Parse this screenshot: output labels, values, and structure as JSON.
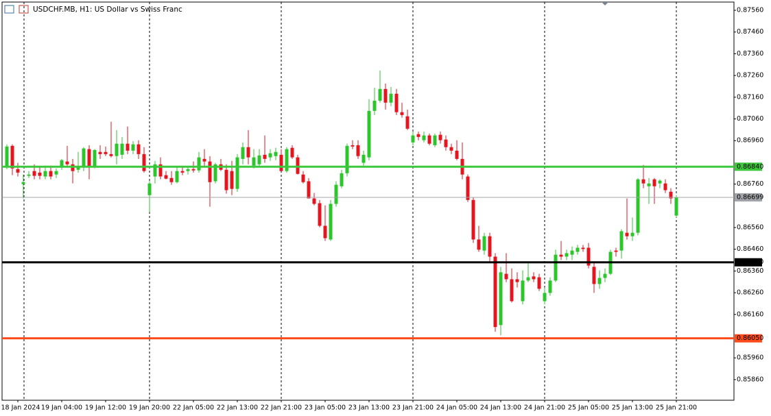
{
  "chart_data": {
    "type": "candlestick",
    "title": "USDCHF.MB, H1:  US Dollar vs Swiss Franc",
    "categories": [
      null,
      null,
      "18 Jan 2024",
      null,
      null,
      null,
      null,
      null,
      null,
      null,
      "19 Jan 04:00",
      null,
      null,
      null,
      null,
      null,
      null,
      null,
      "19 Jan 12:00",
      null,
      null,
      null,
      null,
      null,
      null,
      null,
      "19 Jan 20:00",
      null,
      null,
      null,
      null,
      null,
      null,
      null,
      "22 Jan 05:00",
      null,
      null,
      null,
      null,
      null,
      null,
      null,
      "22 Jan 13:00",
      null,
      null,
      null,
      null,
      null,
      null,
      null,
      "22 Jan 21:00",
      null,
      null,
      null,
      null,
      null,
      null,
      null,
      "23 Jan 05:00",
      null,
      null,
      null,
      null,
      null,
      null,
      null,
      "23 Jan 13:00",
      null,
      null,
      null,
      null,
      null,
      null,
      null,
      "23 Jan 21:00",
      null,
      null,
      null,
      null,
      null,
      null,
      null,
      "24 Jan 05:00",
      null,
      null,
      null,
      null,
      null,
      null,
      null,
      "24 Jan 13:00",
      null,
      null,
      null,
      null,
      null,
      null,
      null,
      "24 Jan 21:00",
      null,
      null,
      null,
      null,
      null,
      null,
      null,
      "25 Jan 05:00",
      null,
      null,
      null,
      null,
      null,
      null,
      null,
      "25 Jan 13:00",
      null,
      null,
      null,
      null,
      null,
      null,
      null,
      "25 Jan 21:00"
    ],
    "open": [
      0.86839,
      0.86936,
      0.86829,
      0.8676,
      0.86798,
      0.8682,
      0.86813,
      0.86795,
      0.8682,
      0.86804,
      0.86836,
      0.86864,
      0.86851,
      0.86826,
      0.86839,
      0.86921,
      0.86842,
      0.86908,
      0.86908,
      0.86898,
      0.86889,
      0.86895,
      0.86946,
      0.86914,
      0.86943,
      0.86898,
      0.86709,
      0.86795,
      0.86851,
      0.86801,
      0.86788,
      0.86769,
      0.8682,
      0.8682,
      0.86829,
      0.86823,
      0.86876,
      0.86864,
      0.86773,
      0.86851,
      0.86826,
      0.8682,
      0.86738,
      0.86876,
      0.8693,
      0.86845,
      0.86851,
      0.86895,
      0.86883,
      0.86889,
      0.86895,
      0.8682,
      0.86927,
      0.86883,
      0.86804,
      0.86773,
      0.86694,
      0.86672,
      0.86568,
      0.86505,
      0.86669,
      0.8675,
      0.8681,
      0.86939,
      0.86939,
      0.86858,
      0.86883,
      0.87097,
      0.87144,
      0.87198,
      0.87135,
      0.87176,
      0.87091,
      0.87072,
      0.86952,
      0.8699,
      0.86962,
      0.86984,
      0.86939,
      0.86987,
      0.86965,
      0.8693,
      0.86914,
      0.86876,
      0.86795,
      0.86687,
      0.86505,
      0.86454,
      0.8652,
      0.86426,
      0.86111,
      0.86347,
      0.86322,
      0.86322,
      0.86221,
      0.86316,
      0.86335,
      0.86331,
      0.86221,
      0.86259,
      0.86316,
      0.86435,
      0.86426,
      0.86435,
      0.86448,
      0.86467,
      0.86467,
      0.86379,
      0.863,
      0.86328,
      0.86347,
      0.86454,
      0.86454,
      0.86536,
      0.8652,
      0.86536,
      0.86782,
      0.8675,
      0.86782,
      0.86763,
      0.86763,
      0.86725,
      0.86615
    ],
    "high": [
      0.86943,
      0.86943,
      0.86858,
      0.86804,
      0.8682,
      0.86851,
      0.86836,
      0.86845,
      0.86845,
      0.86832,
      0.86876,
      0.86936,
      0.86876,
      0.86908,
      0.8693,
      0.86939,
      0.86921,
      0.86939,
      0.86933,
      0.87047,
      0.87009,
      0.86977,
      0.87025,
      0.86958,
      0.86962,
      0.8693,
      0.86773,
      0.86867,
      0.86883,
      0.8682,
      0.8682,
      0.86836,
      0.86839,
      0.86836,
      0.86864,
      0.86908,
      0.86921,
      0.86889,
      0.86858,
      0.86876,
      0.86851,
      0.86867,
      0.86898,
      0.86952,
      0.87009,
      0.86921,
      0.86921,
      0.86984,
      0.86921,
      0.86927,
      0.86921,
      0.8693,
      0.86939,
      0.86895,
      0.8682,
      0.86788,
      0.86719,
      0.86687,
      0.86662,
      0.86687,
      0.86773,
      0.86826,
      0.86946,
      0.86962,
      0.86962,
      0.86914,
      0.87151,
      0.87204,
      0.87283,
      0.87223,
      0.87207,
      0.87198,
      0.87135,
      0.87103,
      0.87002,
      0.87002,
      0.87002,
      0.86993,
      0.86993,
      0.87002,
      0.86984,
      0.86946,
      0.86962,
      0.86952,
      0.86804,
      0.867,
      0.86568,
      0.86536,
      0.86536,
      0.86442,
      0.86379,
      0.86442,
      0.86372,
      0.86354,
      0.86363,
      0.86395,
      0.86354,
      0.86347,
      0.86284,
      0.86331,
      0.86458,
      0.86498,
      0.86458,
      0.86473,
      0.8648,
      0.8648,
      0.86489,
      0.86404,
      0.86363,
      0.86372,
      0.86458,
      0.86467,
      0.86552,
      0.86694,
      0.86606,
      0.86788,
      0.86848,
      0.86788,
      0.86788,
      0.86782,
      0.86782,
      0.86741,
      0.86709
    ],
    "low": [
      0.86829,
      0.86801,
      0.86795,
      0.86694,
      0.86788,
      0.86782,
      0.86782,
      0.86782,
      0.86782,
      0.86788,
      0.86826,
      0.86842,
      0.86763,
      0.86813,
      0.8682,
      0.86782,
      0.86832,
      0.86876,
      0.86889,
      0.86883,
      0.86851,
      0.86876,
      0.86898,
      0.86898,
      0.86876,
      0.86813,
      0.86631,
      0.86763,
      0.86782,
      0.86782,
      0.86757,
      0.86763,
      0.86801,
      0.86804,
      0.86813,
      0.86813,
      0.86839,
      0.86656,
      0.86763,
      0.8682,
      0.86716,
      0.86709,
      0.86725,
      0.86851,
      0.86851,
      0.86832,
      0.86836,
      0.86858,
      0.86867,
      0.8687,
      0.8682,
      0.86813,
      0.86876,
      0.86804,
      0.86763,
      0.86694,
      0.86662,
      0.86561,
      0.86498,
      0.86498,
      0.86656,
      0.86741,
      0.86795,
      0.86921,
      0.86876,
      0.86845,
      0.8687,
      0.87078,
      0.87135,
      0.87103,
      0.87119,
      0.87078,
      0.87066,
      0.87009,
      0.86939,
      0.86962,
      0.86952,
      0.86939,
      0.8693,
      0.86946,
      0.86914,
      0.86898,
      0.8687,
      0.86782,
      0.86678,
      0.86489,
      0.86448,
      0.86435,
      0.86404,
      0.8608,
      0.86064,
      0.86309,
      0.86215,
      0.86284,
      0.86206,
      0.86309,
      0.86309,
      0.86268,
      0.86206,
      0.86246,
      0.86309,
      0.8641,
      0.8641,
      0.8641,
      0.86435,
      0.86448,
      0.86372,
      0.86259,
      0.86278,
      0.86309,
      0.86341,
      0.86426,
      0.86417,
      0.86505,
      0.86498,
      0.86524,
      0.86741,
      0.86669,
      0.86669,
      0.86741,
      0.86719,
      0.86669,
      0.86606
    ],
    "close": [
      0.86933,
      0.86832,
      0.86813,
      0.86769,
      0.86804,
      0.86798,
      0.86798,
      0.8682,
      0.86795,
      0.8682,
      0.8687,
      0.86851,
      0.8682,
      0.86842,
      0.86924,
      0.86836,
      0.86917,
      0.86898,
      0.86898,
      0.86889,
      0.86946,
      0.86946,
      0.86914,
      0.86943,
      0.86898,
      0.8682,
      0.86763,
      0.86851,
      0.86795,
      0.86785,
      0.86769,
      0.8682,
      0.86813,
      0.86829,
      0.86823,
      0.86883,
      0.86864,
      0.86769,
      0.86851,
      0.86826,
      0.86732,
      0.86738,
      0.86883,
      0.8693,
      0.86883,
      0.86883,
      0.86892,
      0.86876,
      0.86902,
      0.86908,
      0.8682,
      0.86921,
      0.86883,
      0.86807,
      0.86769,
      0.86694,
      0.86669,
      0.86568,
      0.86511,
      0.86669,
      0.86757,
      0.8681,
      0.86936,
      0.86933,
      0.86889,
      0.86895,
      0.87097,
      0.87144,
      0.87198,
      0.87135,
      0.87176,
      0.87091,
      0.87078,
      0.87015,
      0.86984,
      0.86977,
      0.86984,
      0.86946,
      0.86984,
      0.86962,
      0.8693,
      0.86914,
      0.86876,
      0.86804,
      0.86687,
      0.86505,
      0.86458,
      0.8652,
      0.86426,
      0.86102,
      0.86354,
      0.86322,
      0.86221,
      0.86309,
      0.86316,
      0.86331,
      0.86322,
      0.86278,
      0.86259,
      0.86316,
      0.86435,
      0.86426,
      0.86442,
      0.86454,
      0.86467,
      0.86461,
      0.86385,
      0.863,
      0.86328,
      0.86347,
      0.86448,
      0.86448,
      0.86543,
      0.8652,
      0.86536,
      0.86782,
      0.86763,
      0.86763,
      0.8675,
      0.86776,
      0.86732,
      0.86694,
      0.86699
    ],
    "up_color": "#2cc52c",
    "down_color": "#e3151f",
    "ylim": [
      0.85765,
      0.87598
    ],
    "yticks": [
      {
        "value": 0.8756,
        "label": "0.87560"
      },
      {
        "value": 0.8746,
        "label": "0.87460"
      },
      {
        "value": 0.8736,
        "label": "0.87360"
      },
      {
        "value": 0.8726,
        "label": "0.87260"
      },
      {
        "value": 0.8716,
        "label": "0.87160"
      },
      {
        "value": 0.8706,
        "label": "0.87060"
      },
      {
        "value": 0.8696,
        "label": "0.86960"
      },
      {
        "value": 0.8676,
        "label": "0.86760"
      },
      {
        "value": 0.8656,
        "label": "0.86560"
      },
      {
        "value": 0.8646,
        "label": "0.86460"
      },
      {
        "value": 0.8636,
        "label": "0.86360"
      },
      {
        "value": 0.8626,
        "label": "0.86260"
      },
      {
        "value": 0.8616,
        "label": "0.86160"
      },
      {
        "value": 0.8596,
        "label": "0.85960"
      },
      {
        "value": 0.8586,
        "label": "0.85860"
      }
    ],
    "levels": [
      {
        "value": 0.8684,
        "label": "0.86840",
        "color": "#3cc83c",
        "width": 3
      },
      {
        "value": 0.86699,
        "label": "0.86699",
        "color": "#a0a4a8",
        "width": 1
      },
      {
        "value": 0.864,
        "label": "0.86400",
        "color": "#000000",
        "width": 3
      },
      {
        "value": 0.8605,
        "label": "0.86050",
        "color": "#ff4a1a",
        "width": 3
      }
    ]
  }
}
